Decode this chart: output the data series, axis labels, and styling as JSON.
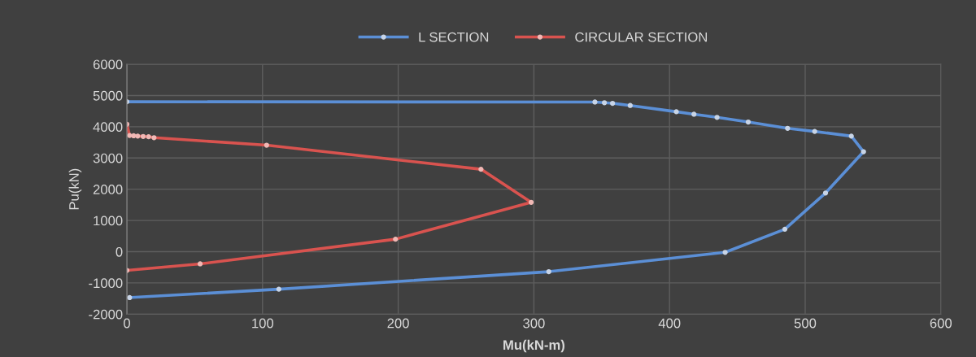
{
  "chart_data": {
    "type": "line",
    "xlabel": "Mu(kN-m)",
    "ylabel": "Pu(kN)",
    "xlim": [
      0,
      600
    ],
    "xticks": [
      0,
      100,
      200,
      300,
      400,
      500,
      600
    ],
    "ylim": [
      -2000,
      6000
    ],
    "yticks": [
      -2000,
      -1000,
      0,
      1000,
      2000,
      3000,
      4000,
      5000,
      6000
    ],
    "grid": true,
    "legend": "top",
    "marker": "circle",
    "line_style": "solid",
    "series": [
      {
        "name": "L SECTION",
        "color": "#5b8fd6",
        "x": [
          0,
          345,
          352,
          358,
          371,
          405,
          418,
          435,
          458,
          487,
          507,
          534,
          543,
          515,
          485,
          441,
          311,
          112,
          2
        ],
        "values": [
          4800,
          4790,
          4770,
          4750,
          4680,
          4480,
          4400,
          4300,
          4150,
          3950,
          3850,
          3700,
          3200,
          1880,
          720,
          -20,
          -640,
          -1200,
          -1470
        ]
      },
      {
        "name": "CIRCULAR SECTION",
        "color": "#d9534f",
        "x": [
          0,
          2,
          5,
          8,
          12,
          16,
          20,
          103,
          261,
          298,
          198,
          54,
          0
        ],
        "values": [
          4080,
          3720,
          3710,
          3700,
          3690,
          3680,
          3650,
          3410,
          2640,
          1580,
          400,
          -390,
          -600
        ]
      }
    ]
  }
}
